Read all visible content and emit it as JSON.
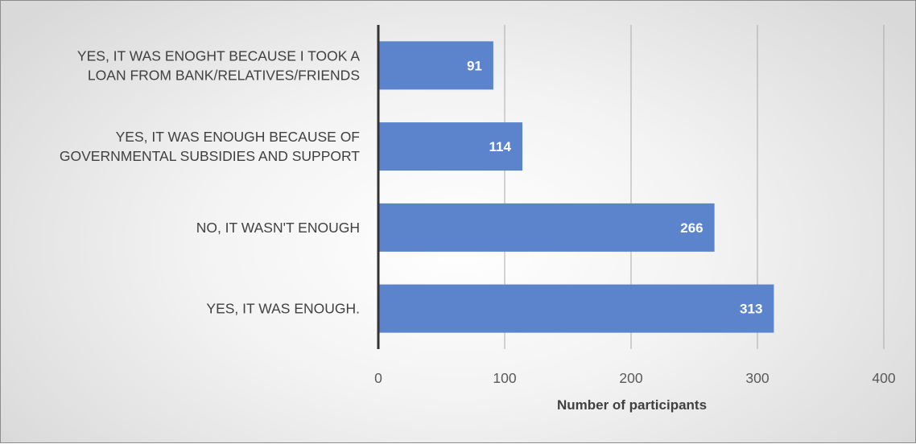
{
  "chart_data": {
    "type": "bar",
    "orientation": "horizontal",
    "categories": [
      [
        "YES, IT WAS ENOGHT BECAUSE I TOOK A",
        "LOAN FROM BANK/RELATIVES/FRIENDS"
      ],
      [
        "YES, IT WAS ENOUGH BECAUSE OF",
        "GOVERNMENTAL SUBSIDIES AND SUPPORT"
      ],
      [
        "NO,  IT WASN'T ENOUGH"
      ],
      [
        "YES, IT WAS ENOUGH."
      ]
    ],
    "values": [
      91,
      114,
      266,
      313
    ],
    "data_labels": [
      "91",
      "114",
      "266",
      "313"
    ],
    "xlabel": "Number of participants",
    "ylabel": "",
    "xlim": [
      0,
      400
    ],
    "xticks": [
      "0",
      "100",
      "200",
      "300",
      "400"
    ],
    "grid": true,
    "bar_color": "#5b84cc",
    "gridline_color": "#aaaaaa",
    "axis_color": "#333333"
  }
}
